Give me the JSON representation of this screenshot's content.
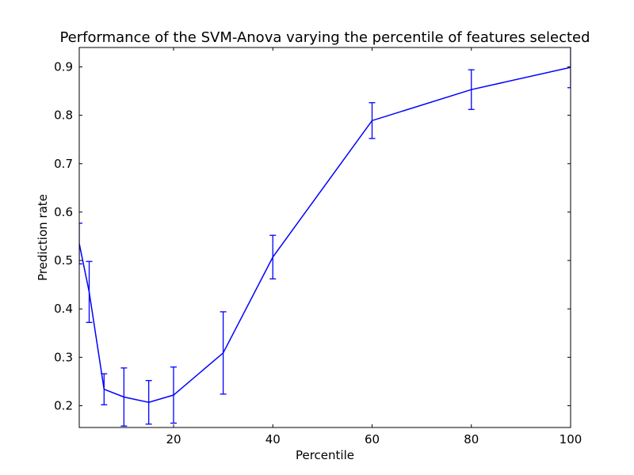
{
  "chart_data": {
    "type": "line",
    "title": "Performance of the SVM-Anova varying the percentile of features selected",
    "xlabel": "Percentile",
    "ylabel": "Prediction rate",
    "xlim": [
      1,
      100
    ],
    "ylim": [
      0.155,
      0.94
    ],
    "xticks": [
      20,
      40,
      60,
      80,
      100
    ],
    "yticks": [
      0.2,
      0.3,
      0.4,
      0.5,
      0.6,
      0.7,
      0.8,
      0.9
    ],
    "grid": false,
    "legend": "none",
    "color": "#0000ff",
    "series": [
      {
        "x": [
          1,
          3,
          6,
          10,
          15,
          20,
          30,
          40,
          60,
          80,
          100
        ],
        "y": [
          0.535,
          0.435,
          0.234,
          0.218,
          0.207,
          0.222,
          0.309,
          0.507,
          0.789,
          0.853,
          0.899
        ],
        "error": [
          0.042,
          0.063,
          0.032,
          0.06,
          0.045,
          0.058,
          0.085,
          0.045,
          0.037,
          0.041,
          0.042
        ]
      }
    ]
  }
}
